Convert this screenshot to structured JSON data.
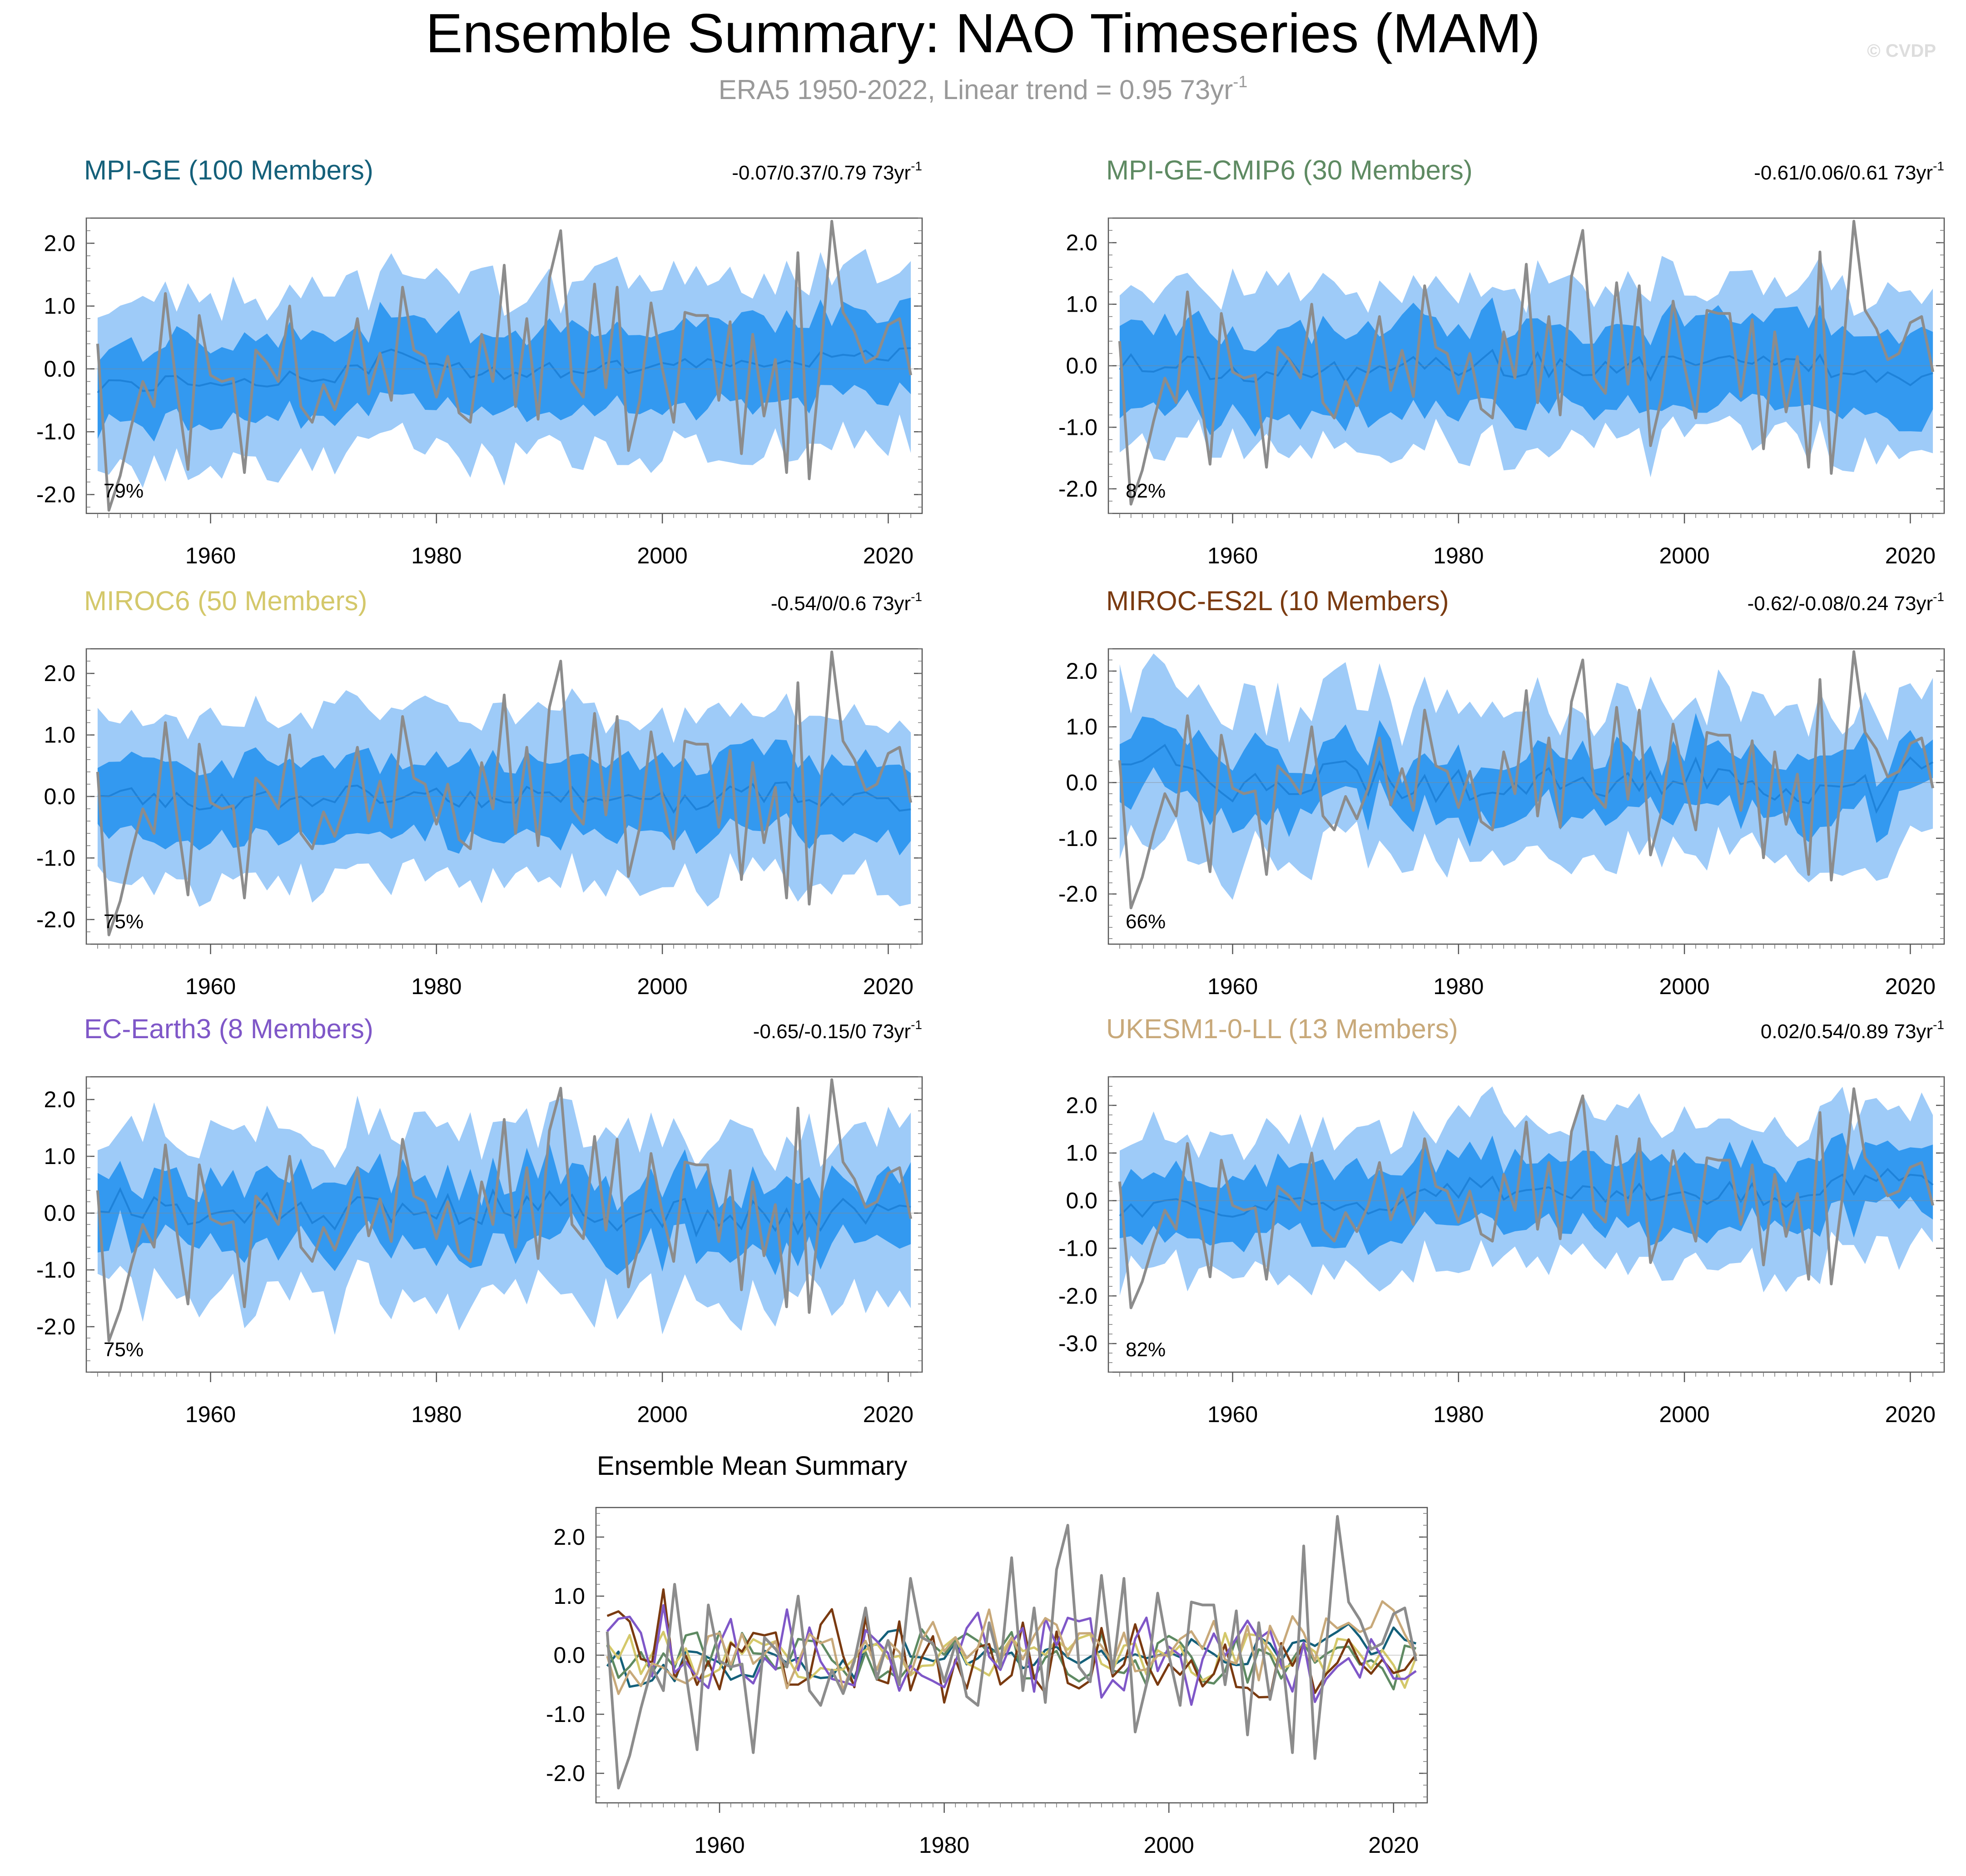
{
  "page": {
    "title": "Ensemble Summary: NAO Timeseries (MAM)",
    "subtitle_main": "ERA5 1950-2022, Linear trend = 0.95 73yr",
    "subtitle_sup": "-1",
    "credit": "© CVDP"
  },
  "colors": {
    "title": "#000000",
    "subtitle": "#999999",
    "credit": "#dddddd",
    "outer_band": "#9ecbf8",
    "inner_band": "#3399f0",
    "ens_mean": "#1c7fd6",
    "obs": "#8c8c8c",
    "axis": "#666666"
  },
  "chart_data": [
    {
      "type": "line",
      "panel": "MPI-GE",
      "title": "MPI-GE (100 Members)",
      "title_color": "#14607a",
      "trend_main": "-0.07/0.37/0.79 73yr",
      "trend_sup": "-1",
      "percent": "79%",
      "xlim": [
        1949,
        2023
      ],
      "ylim": [
        -2.3,
        2.4
      ],
      "yticks": [
        -2,
        -1,
        0,
        1,
        2
      ],
      "ytick_labels": [
        "-2.0",
        "-1.0",
        "0.0",
        "1.0",
        "2.0"
      ],
      "xticks": [
        1960,
        1980,
        2000,
        2020
      ],
      "xtick_labels": [
        "1960",
        "1980",
        "2000",
        "2020"
      ],
      "seed": 11,
      "outer_half": 1.35,
      "inner_half": 0.65,
      "outer_var": 0.35,
      "inner_var": 0.2,
      "mean_amp": 0.15,
      "mean_points": [
        [
          1950,
          -0.3
        ],
        [
          1960,
          -0.15
        ],
        [
          1970,
          -0.2
        ],
        [
          1977,
          0.25
        ],
        [
          1980,
          0.0
        ],
        [
          1990,
          -0.05
        ],
        [
          2000,
          0.0
        ],
        [
          2010,
          0.05
        ],
        [
          2015,
          0.25
        ],
        [
          2022,
          0.2
        ]
      ]
    },
    {
      "type": "line",
      "panel": "MPI-GE-CMIP6",
      "title": "MPI-GE-CMIP6 (30 Members)",
      "title_color": "#5e8a62",
      "trend_main": "-0.61/0.06/0.61 73yr",
      "trend_sup": "-1",
      "percent": "82%",
      "xlim": [
        1949,
        2023
      ],
      "ylim": [
        -2.4,
        2.4
      ],
      "yticks": [
        -2,
        -1,
        0,
        1,
        2
      ],
      "ytick_labels": [
        "-2.0",
        "-1.0",
        "0.0",
        "1.0",
        "2.0"
      ],
      "xticks": [
        1960,
        1980,
        2000,
        2020
      ],
      "xtick_labels": [
        "1960",
        "1980",
        "2000",
        "2020"
      ],
      "seed": 23,
      "outer_half": 1.3,
      "inner_half": 0.7,
      "outer_var": 0.35,
      "inner_var": 0.22,
      "mean_amp": 0.22,
      "mean_points": [
        [
          1950,
          0.05
        ],
        [
          1960,
          -0.05
        ],
        [
          1970,
          -0.1
        ],
        [
          1980,
          0.05
        ],
        [
          1990,
          0.0
        ],
        [
          2000,
          -0.05
        ],
        [
          2010,
          0.05
        ],
        [
          2022,
          -0.15
        ]
      ]
    },
    {
      "type": "line",
      "panel": "MIROC6",
      "title": "MIROC6 (50 Members)",
      "title_color": "#d4c86a",
      "trend_main": "-0.54/0/0.6 73yr",
      "trend_sup": "-1",
      "percent": "75%",
      "xlim": [
        1949,
        2023
      ],
      "ylim": [
        -2.4,
        2.4
      ],
      "yticks": [
        -2,
        -1,
        0,
        1,
        2
      ],
      "ytick_labels": [
        "-2.0",
        "-1.0",
        "0.0",
        "1.0",
        "2.0"
      ],
      "xticks": [
        1960,
        1980,
        2000,
        2020
      ],
      "xtick_labels": [
        "1960",
        "1980",
        "2000",
        "2020"
      ],
      "seed": 37,
      "outer_half": 1.35,
      "inner_half": 0.62,
      "outer_var": 0.3,
      "inner_var": 0.18,
      "mean_amp": 0.18,
      "mean_points": [
        [
          1950,
          0.1
        ],
        [
          1960,
          -0.1
        ],
        [
          1970,
          0.0
        ],
        [
          1980,
          0.0
        ],
        [
          1990,
          0.0
        ],
        [
          2000,
          -0.1
        ],
        [
          2010,
          0.1
        ],
        [
          2022,
          -0.2
        ]
      ]
    },
    {
      "type": "line",
      "panel": "MIROC-ES2L",
      "title": "MIROC-ES2L (10 Members)",
      "title_color": "#7a3a10",
      "trend_main": "-0.62/-0.08/0.24 73yr",
      "trend_sup": "-1",
      "percent": "66%",
      "xlim": [
        1949,
        2023
      ],
      "ylim": [
        -2.9,
        2.4
      ],
      "yticks": [
        -2,
        -1,
        0,
        1,
        2
      ],
      "ytick_labels": [
        "-2.0",
        "-1.0",
        "0.0",
        "1.0",
        "2.0"
      ],
      "xticks": [
        1960,
        1980,
        2000,
        2020
      ],
      "xtick_labels": [
        "1960",
        "1980",
        "2000",
        "2020"
      ],
      "seed": 41,
      "outer_half": 1.35,
      "inner_half": 0.55,
      "outer_var": 0.45,
      "inner_var": 0.3,
      "mean_amp": 0.35,
      "mean_points": [
        [
          1950,
          0.5
        ],
        [
          1955,
          0.4
        ],
        [
          1960,
          0.0
        ],
        [
          1970,
          0.1
        ],
        [
          1980,
          -0.1
        ],
        [
          1990,
          0.0
        ],
        [
          2000,
          0.1
        ],
        [
          2010,
          -0.1
        ],
        [
          2018,
          -0.2
        ],
        [
          2022,
          0.7
        ]
      ]
    },
    {
      "type": "line",
      "panel": "EC-Earth3",
      "title": "EC-Earth3 (8 Members)",
      "title_color": "#7f57c8",
      "trend_main": "-0.65/-0.15/0 73yr",
      "trend_sup": "-1",
      "percent": "75%",
      "xlim": [
        1949,
        2023
      ],
      "ylim": [
        -2.8,
        2.4
      ],
      "yticks": [
        -2,
        -1,
        0,
        1,
        2
      ],
      "ytick_labels": [
        "-2.0",
        "-1.0",
        "0.0",
        "1.0",
        "2.0"
      ],
      "xticks": [
        1960,
        1980,
        2000,
        2020
      ],
      "xtick_labels": [
        "1960",
        "1980",
        "2000",
        "2020"
      ],
      "seed": 53,
      "outer_half": 1.45,
      "inner_half": 0.6,
      "outer_var": 0.45,
      "inner_var": 0.3,
      "mean_amp": 0.35,
      "mean_points": [
        [
          1950,
          0.2
        ],
        [
          1960,
          0.1
        ],
        [
          1970,
          0.0
        ],
        [
          1980,
          0.1
        ],
        [
          1990,
          0.1
        ],
        [
          2000,
          -0.1
        ],
        [
          2010,
          -0.1
        ],
        [
          2022,
          0.0
        ]
      ]
    },
    {
      "type": "line",
      "panel": "UKESM1-0-LL",
      "title": "UKESM1-0-LL (13 Members)",
      "title_color": "#c8a97a",
      "trend_main": "0.02/0.54/0.89 73yr",
      "trend_sup": "-1",
      "percent": "82%",
      "xlim": [
        1949,
        2023
      ],
      "ylim": [
        -3.6,
        2.6
      ],
      "yticks": [
        -3,
        -2,
        -1,
        0,
        1,
        2
      ],
      "ytick_labels": [
        "-3.0",
        "-2.0",
        "-1.0",
        "0.0",
        "1.0",
        "2.0"
      ],
      "xticks": [
        1960,
        1980,
        2000,
        2020
      ],
      "xtick_labels": [
        "1960",
        "1980",
        "2000",
        "2020"
      ],
      "seed": 67,
      "outer_half": 1.5,
      "inner_half": 0.7,
      "outer_var": 0.45,
      "inner_var": 0.25,
      "mean_amp": 0.25,
      "mean_points": [
        [
          1950,
          -0.2
        ],
        [
          1960,
          -0.1
        ],
        [
          1970,
          -0.2
        ],
        [
          1980,
          0.3
        ],
        [
          1990,
          0.2
        ],
        [
          2000,
          0.2
        ],
        [
          2010,
          0.1
        ],
        [
          2020,
          0.6
        ],
        [
          2022,
          0.3
        ]
      ]
    },
    {
      "type": "line",
      "panel": "ensemble-mean-summary",
      "title": "Ensemble Mean Summary",
      "xlim": [
        1949,
        2023
      ],
      "ylim": [
        -2.5,
        2.5
      ],
      "yticks": [
        -2,
        -1,
        0,
        1,
        2
      ],
      "ytick_labels": [
        "-2.0",
        "-1.0",
        "0.0",
        "1.0",
        "2.0"
      ],
      "xticks": [
        1960,
        1980,
        2000,
        2020
      ],
      "xtick_labels": [
        "1960",
        "1980",
        "2000",
        "2020"
      ],
      "series_colors": [
        "#14607a",
        "#5e8a62",
        "#d4c86a",
        "#7a3a10",
        "#7f57c8",
        "#c8a97a"
      ]
    }
  ],
  "obs_series": {
    "name": "ERA5",
    "x": [
      1950,
      1951,
      1952,
      1953,
      1954,
      1955,
      1956,
      1957,
      1958,
      1959,
      1960,
      1961,
      1962,
      1963,
      1964,
      1965,
      1966,
      1967,
      1968,
      1969,
      1970,
      1971,
      1972,
      1973,
      1974,
      1975,
      1976,
      1977,
      1978,
      1979,
      1980,
      1981,
      1982,
      1983,
      1984,
      1985,
      1986,
      1987,
      1988,
      1989,
      1990,
      1991,
      1992,
      1993,
      1994,
      1995,
      1996,
      1997,
      1998,
      1999,
      2000,
      2001,
      2002,
      2003,
      2004,
      2005,
      2006,
      2007,
      2008,
      2009,
      2010,
      2011,
      2012,
      2013,
      2014,
      2015,
      2016,
      2017,
      2018,
      2019,
      2020,
      2021,
      2022
    ],
    "values": [
      0.4,
      -2.25,
      -1.7,
      -0.9,
      -0.2,
      -0.6,
      1.2,
      -0.3,
      -1.6,
      0.85,
      -0.1,
      -0.2,
      -0.15,
      -1.65,
      0.3,
      0.1,
      -0.2,
      1.0,
      -0.6,
      -0.85,
      -0.25,
      -0.65,
      -0.1,
      0.8,
      -0.4,
      0.25,
      -0.5,
      1.3,
      0.3,
      0.2,
      -0.45,
      0.2,
      -0.7,
      -0.85,
      0.55,
      -0.2,
      1.65,
      -0.6,
      0.8,
      -0.8,
      1.45,
      2.2,
      -0.2,
      -0.45,
      1.35,
      -0.3,
      1.3,
      -1.3,
      -0.5,
      1.05,
      0.0,
      -0.85,
      0.9,
      0.85,
      0.85,
      -0.5,
      0.75,
      -1.35,
      0.55,
      -0.75,
      0.15,
      -1.65,
      1.85,
      -1.75,
      0.1,
      2.35,
      0.9,
      0.6,
      0.1,
      0.2,
      0.7,
      0.8,
      -0.1
    ]
  }
}
